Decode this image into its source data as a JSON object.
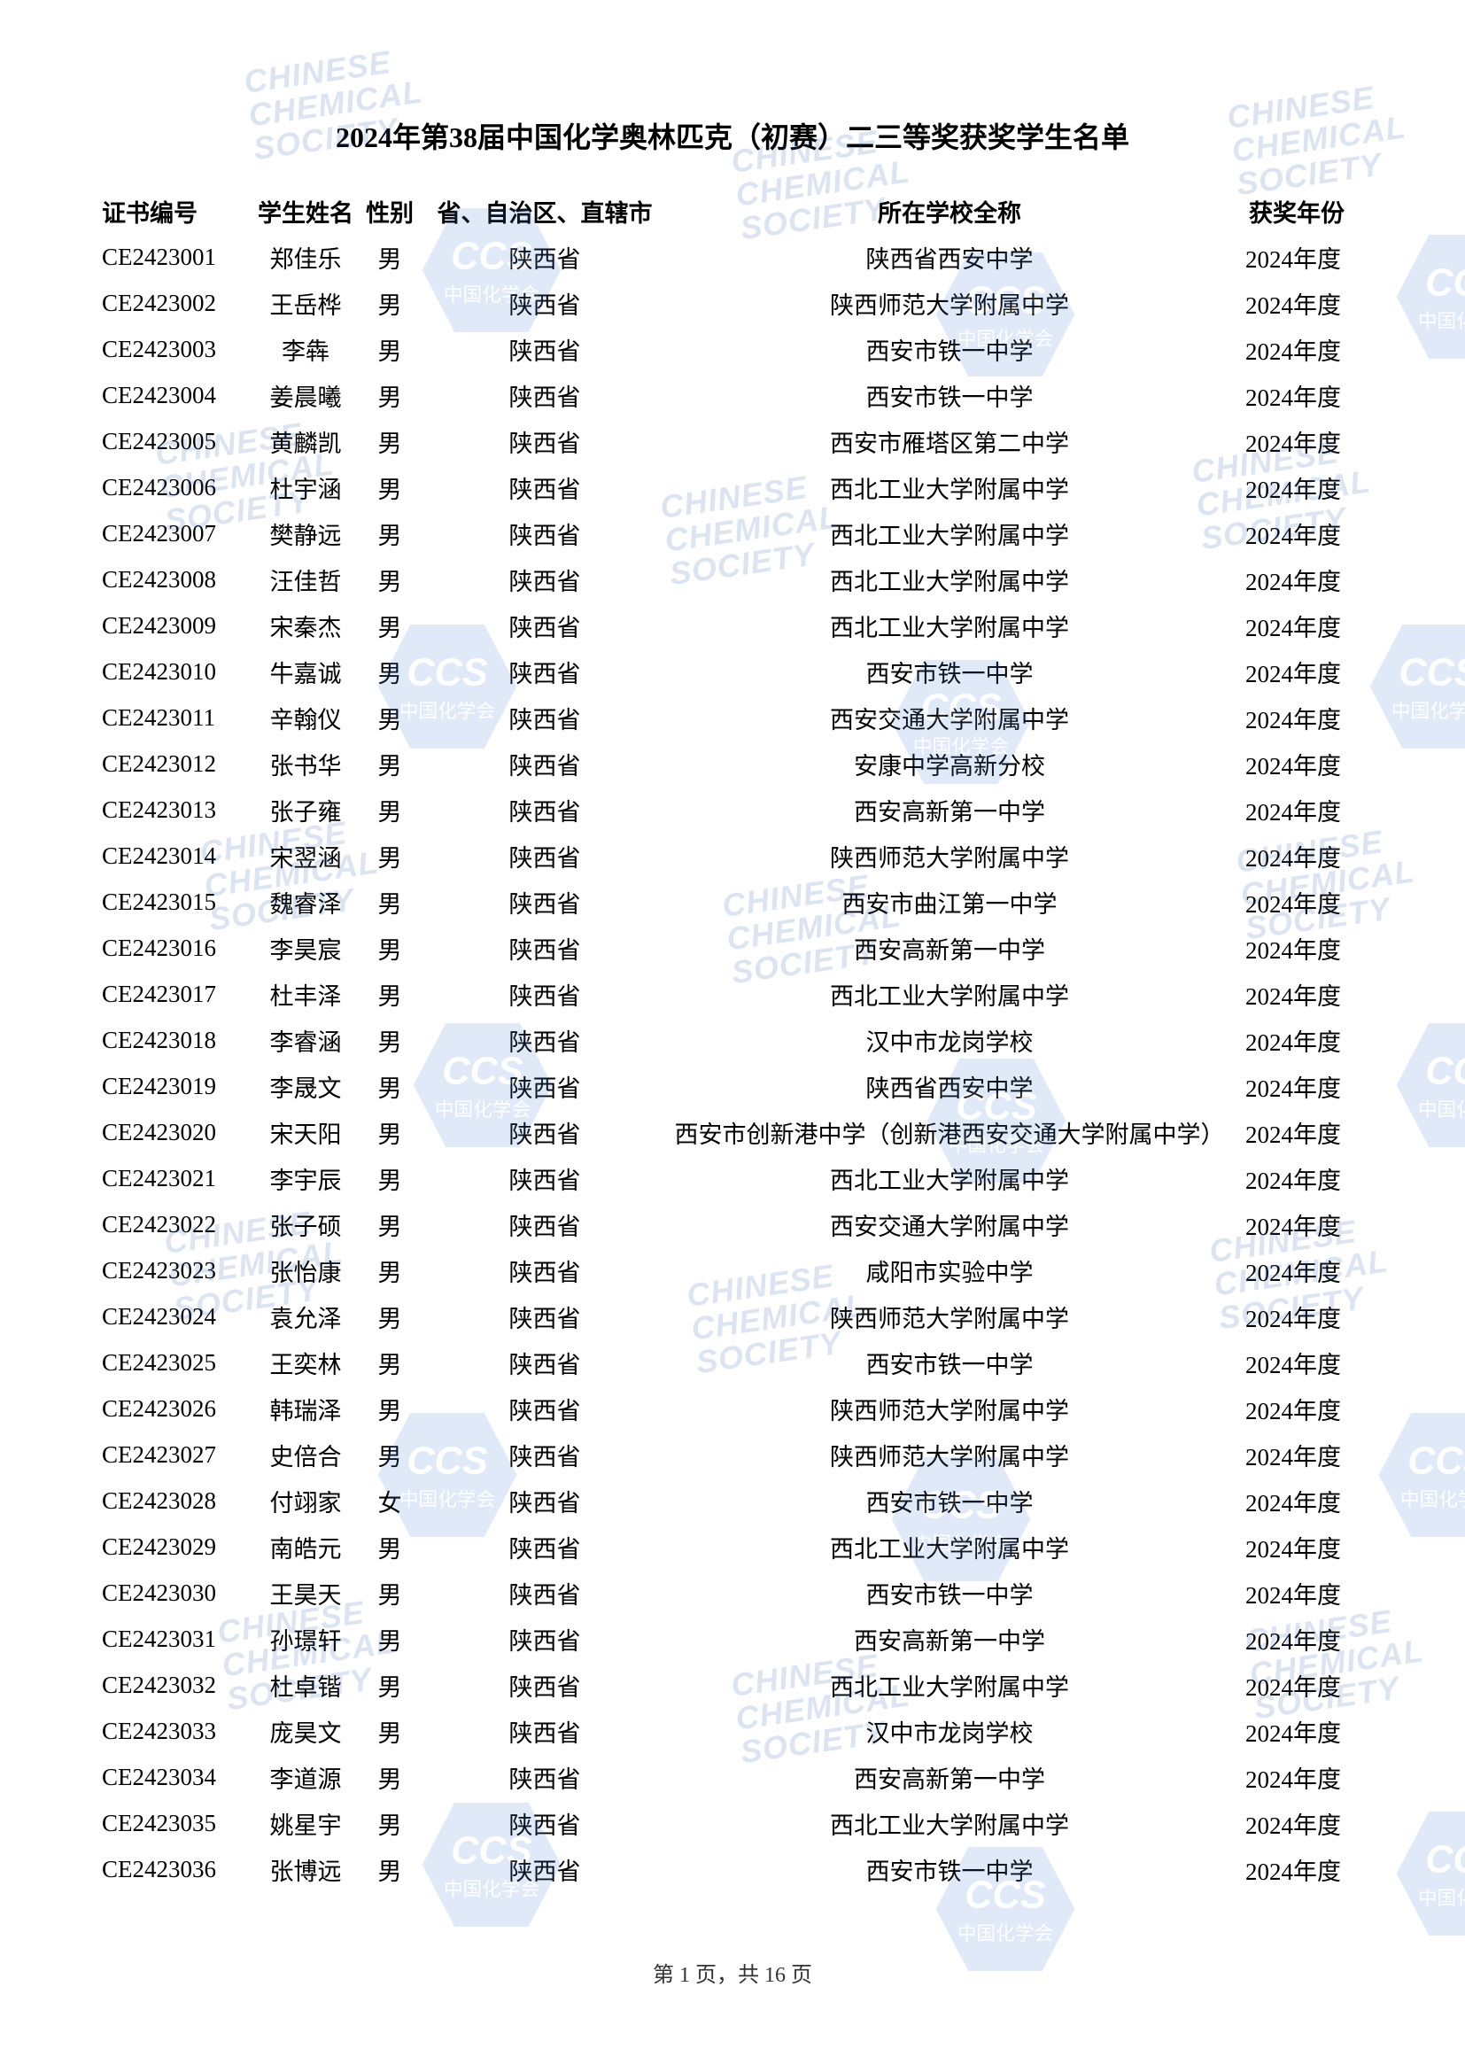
{
  "title": "2024年第38届中国化学奥林匹克（初赛）二三等奖获奖学生名单",
  "columns": {
    "id": "证书编号",
    "name": "学生姓名",
    "gender": "性别",
    "province": "省、自治区、直辖市",
    "school": "所在学校全称",
    "year": "获奖年份"
  },
  "footer": {
    "prefix": "第 ",
    "page": "1",
    "mid": " 页，共 ",
    "total": "16",
    "suffix": " 页"
  },
  "watermark": {
    "line1": "CHINESE",
    "line2": "CHEMICAL",
    "line3": "SOCIETY",
    "ccs": "CCS",
    "sub": "中国化学会",
    "hex_fill": "#3d7cd6",
    "opacity": 0.16
  },
  "rows": [
    {
      "id": "CE2423001",
      "name": "郑佳乐",
      "gender": "男",
      "province": "陕西省",
      "school": "陕西省西安中学",
      "year": "2024年度"
    },
    {
      "id": "CE2423002",
      "name": "王岳桦",
      "gender": "男",
      "province": "陕西省",
      "school": "陕西师范大学附属中学",
      "year": "2024年度"
    },
    {
      "id": "CE2423003",
      "name": "李犇",
      "gender": "男",
      "province": "陕西省",
      "school": "西安市铁一中学",
      "year": "2024年度"
    },
    {
      "id": "CE2423004",
      "name": "姜晨曦",
      "gender": "男",
      "province": "陕西省",
      "school": "西安市铁一中学",
      "year": "2024年度"
    },
    {
      "id": "CE2423005",
      "name": "黄麟凯",
      "gender": "男",
      "province": "陕西省",
      "school": "西安市雁塔区第二中学",
      "year": "2024年度"
    },
    {
      "id": "CE2423006",
      "name": "杜宇涵",
      "gender": "男",
      "province": "陕西省",
      "school": "西北工业大学附属中学",
      "year": "2024年度"
    },
    {
      "id": "CE2423007",
      "name": "樊静远",
      "gender": "男",
      "province": "陕西省",
      "school": "西北工业大学附属中学",
      "year": "2024年度"
    },
    {
      "id": "CE2423008",
      "name": "汪佳哲",
      "gender": "男",
      "province": "陕西省",
      "school": "西北工业大学附属中学",
      "year": "2024年度"
    },
    {
      "id": "CE2423009",
      "name": "宋秦杰",
      "gender": "男",
      "province": "陕西省",
      "school": "西北工业大学附属中学",
      "year": "2024年度"
    },
    {
      "id": "CE2423010",
      "name": "牛嘉诚",
      "gender": "男",
      "province": "陕西省",
      "school": "西安市铁一中学",
      "year": "2024年度"
    },
    {
      "id": "CE2423011",
      "name": "辛翰仪",
      "gender": "男",
      "province": "陕西省",
      "school": "西安交通大学附属中学",
      "year": "2024年度"
    },
    {
      "id": "CE2423012",
      "name": "张书华",
      "gender": "男",
      "province": "陕西省",
      "school": "安康中学高新分校",
      "year": "2024年度"
    },
    {
      "id": "CE2423013",
      "name": "张子雍",
      "gender": "男",
      "province": "陕西省",
      "school": "西安高新第一中学",
      "year": "2024年度"
    },
    {
      "id": "CE2423014",
      "name": "宋翌涵",
      "gender": "男",
      "province": "陕西省",
      "school": "陕西师范大学附属中学",
      "year": "2024年度"
    },
    {
      "id": "CE2423015",
      "name": "魏睿泽",
      "gender": "男",
      "province": "陕西省",
      "school": "西安市曲江第一中学",
      "year": "2024年度"
    },
    {
      "id": "CE2423016",
      "name": "李昊宸",
      "gender": "男",
      "province": "陕西省",
      "school": "西安高新第一中学",
      "year": "2024年度"
    },
    {
      "id": "CE2423017",
      "name": "杜丰泽",
      "gender": "男",
      "province": "陕西省",
      "school": "西北工业大学附属中学",
      "year": "2024年度"
    },
    {
      "id": "CE2423018",
      "name": "李睿涵",
      "gender": "男",
      "province": "陕西省",
      "school": "汉中市龙岗学校",
      "year": "2024年度"
    },
    {
      "id": "CE2423019",
      "name": "李晟文",
      "gender": "男",
      "province": "陕西省",
      "school": "陕西省西安中学",
      "year": "2024年度"
    },
    {
      "id": "CE2423020",
      "name": "宋天阳",
      "gender": "男",
      "province": "陕西省",
      "school": "西安市创新港中学（创新港西安交通大学附属中学）",
      "year": "2024年度"
    },
    {
      "id": "CE2423021",
      "name": "李宇辰",
      "gender": "男",
      "province": "陕西省",
      "school": "西北工业大学附属中学",
      "year": "2024年度"
    },
    {
      "id": "CE2423022",
      "name": "张子硕",
      "gender": "男",
      "province": "陕西省",
      "school": "西安交通大学附属中学",
      "year": "2024年度"
    },
    {
      "id": "CE2423023",
      "name": "张怡康",
      "gender": "男",
      "province": "陕西省",
      "school": "咸阳市实验中学",
      "year": "2024年度"
    },
    {
      "id": "CE2423024",
      "name": "袁允泽",
      "gender": "男",
      "province": "陕西省",
      "school": "陕西师范大学附属中学",
      "year": "2024年度"
    },
    {
      "id": "CE2423025",
      "name": "王奕林",
      "gender": "男",
      "province": "陕西省",
      "school": "西安市铁一中学",
      "year": "2024年度"
    },
    {
      "id": "CE2423026",
      "name": "韩瑞泽",
      "gender": "男",
      "province": "陕西省",
      "school": "陕西师范大学附属中学",
      "year": "2024年度"
    },
    {
      "id": "CE2423027",
      "name": "史倍合",
      "gender": "男",
      "province": "陕西省",
      "school": "陕西师范大学附属中学",
      "year": "2024年度"
    },
    {
      "id": "CE2423028",
      "name": "付翊家",
      "gender": "女",
      "province": "陕西省",
      "school": "西安市铁一中学",
      "year": "2024年度"
    },
    {
      "id": "CE2423029",
      "name": "南皓元",
      "gender": "男",
      "province": "陕西省",
      "school": "西北工业大学附属中学",
      "year": "2024年度"
    },
    {
      "id": "CE2423030",
      "name": "王昊天",
      "gender": "男",
      "province": "陕西省",
      "school": "西安市铁一中学",
      "year": "2024年度"
    },
    {
      "id": "CE2423031",
      "name": "孙璟轩",
      "gender": "男",
      "province": "陕西省",
      "school": "西安高新第一中学",
      "year": "2024年度"
    },
    {
      "id": "CE2423032",
      "name": "杜卓锴",
      "gender": "男",
      "province": "陕西省",
      "school": "西北工业大学附属中学",
      "year": "2024年度"
    },
    {
      "id": "CE2423033",
      "name": "庞昊文",
      "gender": "男",
      "province": "陕西省",
      "school": "汉中市龙岗学校",
      "year": "2024年度"
    },
    {
      "id": "CE2423034",
      "name": "李道源",
      "gender": "男",
      "province": "陕西省",
      "school": "西安高新第一中学",
      "year": "2024年度"
    },
    {
      "id": "CE2423035",
      "name": "姚星宇",
      "gender": "男",
      "province": "陕西省",
      "school": "西北工业大学附属中学",
      "year": "2024年度"
    },
    {
      "id": "CE2423036",
      "name": "张博远",
      "gender": "男",
      "province": "陕西省",
      "school": "西安市铁一中学",
      "year": "2024年度"
    }
  ]
}
